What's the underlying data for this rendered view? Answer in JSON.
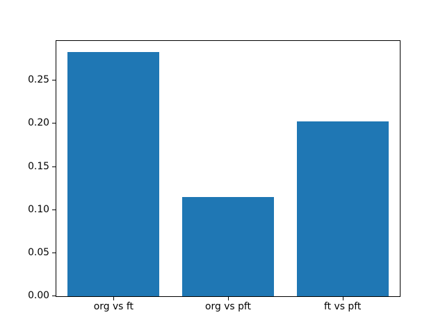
{
  "figure": {
    "background_color": "#ffffff",
    "spine_color": "#000000",
    "tick_label_color": "#000000"
  },
  "chart_data": {
    "type": "bar",
    "categories": [
      "org vs ft",
      "org vs pft",
      "ft vs pft"
    ],
    "values": [
      0.283,
      0.115,
      0.203
    ],
    "title": "",
    "xlabel": "",
    "ylabel": "",
    "ylim": [
      0,
      0.296
    ],
    "ytick_labels": [
      "0.00",
      "0.05",
      "0.10",
      "0.15",
      "0.20",
      "0.25"
    ],
    "ytick_values": [
      0.0,
      0.05,
      0.1,
      0.15,
      0.2,
      0.25
    ],
    "bar_color": "#1f77b4",
    "bar_width_fraction": 0.8,
    "grid": false,
    "legend": false
  }
}
